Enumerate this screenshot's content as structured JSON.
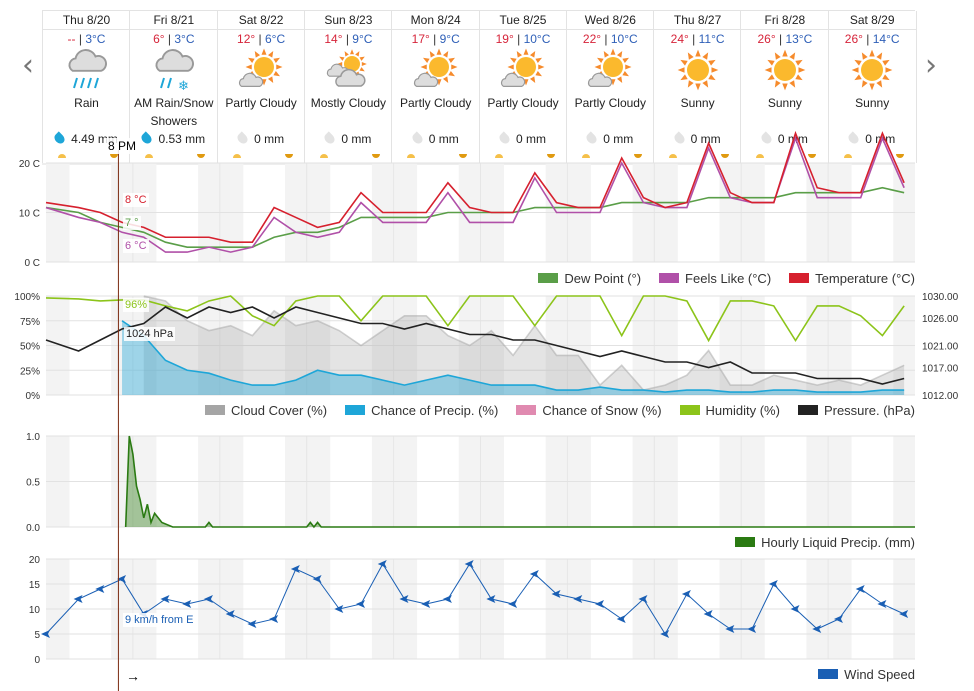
{
  "nav": {
    "prev": "‹",
    "next": "›"
  },
  "days": [
    {
      "day": "Thu 8/20",
      "hi": "--",
      "lo": "3°C",
      "icon": "rain",
      "cond": "Rain",
      "cond2": "",
      "precip": "4.49 mm",
      "wet": true
    },
    {
      "day": "Fri 8/21",
      "hi": "6°",
      "lo": "3°C",
      "icon": "rain-snow",
      "cond": "AM Rain/Snow",
      "cond2": "Showers",
      "precip": "0.53 mm",
      "wet": true
    },
    {
      "day": "Sat 8/22",
      "hi": "12°",
      "lo": "6°C",
      "icon": "partly-cloudy",
      "cond": "Partly Cloudy",
      "cond2": "",
      "precip": "0 mm",
      "wet": false
    },
    {
      "day": "Sun 8/23",
      "hi": "14°",
      "lo": "9°C",
      "icon": "mostly-cloudy",
      "cond": "Mostly Cloudy",
      "cond2": "",
      "precip": "0 mm",
      "wet": false
    },
    {
      "day": "Mon 8/24",
      "hi": "17°",
      "lo": "9°C",
      "icon": "partly-cloudy",
      "cond": "Partly Cloudy",
      "cond2": "",
      "precip": "0 mm",
      "wet": false
    },
    {
      "day": "Tue 8/25",
      "hi": "19°",
      "lo": "10°C",
      "icon": "partly-cloudy",
      "cond": "Partly Cloudy",
      "cond2": "",
      "precip": "0 mm",
      "wet": false
    },
    {
      "day": "Wed 8/26",
      "hi": "22°",
      "lo": "10°C",
      "icon": "partly-cloudy",
      "cond": "Partly Cloudy",
      "cond2": "",
      "precip": "0 mm",
      "wet": false
    },
    {
      "day": "Thu 8/27",
      "hi": "24°",
      "lo": "11°C",
      "icon": "sunny",
      "cond": "Sunny",
      "cond2": "",
      "precip": "0 mm",
      "wet": false
    },
    {
      "day": "Fri 8/28",
      "hi": "26°",
      "lo": "13°C",
      "icon": "sunny",
      "cond": "Sunny",
      "cond2": "",
      "precip": "0 mm",
      "wet": false
    },
    {
      "day": "Sat 8/29",
      "hi": "26°",
      "lo": "14°C",
      "icon": "sunny",
      "cond": "Sunny",
      "cond2": "",
      "precip": "0 mm",
      "wet": false
    }
  ],
  "cursor": {
    "time": "8 PM",
    "hour": 20,
    "temp": "8 °C",
    "dew": "7 °",
    "feels": "6 °C",
    "humidity": "96%",
    "pressure": "1024 hPa",
    "wind": "9 km/h from E",
    "wind_arrow": "→"
  },
  "chart_data": [
    {
      "type": "line",
      "name": "temperature",
      "hours_step": 6,
      "yticks": [
        "0 C",
        "10 C",
        "20 C"
      ],
      "ytick_values": [
        0,
        10,
        20
      ],
      "ylim": [
        0,
        20
      ],
      "series": [
        {
          "name": "Dew Point (°)",
          "color": "#5a9e48",
          "values": [
            11,
            10,
            8,
            7,
            6,
            4,
            3,
            3,
            3,
            3,
            5,
            6,
            6,
            7,
            9,
            9,
            9,
            9,
            10,
            10,
            10,
            10,
            11,
            11,
            11,
            11,
            12,
            12,
            12,
            12,
            13,
            13,
            13,
            13,
            14,
            14,
            14,
            14,
            15,
            14
          ]
        },
        {
          "name": "Feels Like (°C)",
          "color": "#b050a8",
          "values": [
            11,
            9,
            8,
            6,
            5,
            2,
            2,
            3,
            2,
            3,
            9,
            6,
            5,
            6,
            12,
            8,
            8,
            8,
            14,
            8,
            8,
            8,
            17,
            10,
            10,
            10,
            20,
            12,
            11,
            11,
            23,
            13,
            12,
            12,
            25,
            13,
            13,
            13,
            25,
            15
          ]
        },
        {
          "name": "Temperature (°C)",
          "color": "#d6202e",
          "values": [
            12,
            11,
            10,
            8,
            7,
            5,
            5,
            5,
            4,
            4,
            11,
            9,
            7,
            8,
            14,
            10,
            10,
            10,
            16,
            11,
            10,
            10,
            18,
            12,
            11,
            11,
            21,
            13,
            11,
            12,
            24,
            14,
            12,
            12,
            26,
            15,
            14,
            14,
            26,
            16
          ]
        }
      ]
    },
    {
      "type": "area",
      "name": "atmosphere",
      "hours_step": 6,
      "yticks": [
        "0%",
        "25%",
        "50%",
        "75%",
        "100%"
      ],
      "ytick_values": [
        0,
        25,
        50,
        75,
        100
      ],
      "ylim": [
        0,
        100
      ],
      "y2ticks": [
        "1012.00",
        "1017.00",
        "1021.00",
        "1026.00",
        "1030.00"
      ],
      "y2tick_values": [
        1012,
        1017,
        1021,
        1026,
        1030
      ],
      "y2lim": [
        1012,
        1030
      ],
      "series": [
        {
          "name": "Cloud Cover (%)",
          "color": "#a5a5a5",
          "values": [
            null,
            null,
            null,
            null,
            100,
            95,
            75,
            65,
            70,
            60,
            85,
            70,
            75,
            65,
            50,
            65,
            80,
            80,
            60,
            50,
            65,
            40,
            70,
            40,
            40,
            10,
            30,
            5,
            10,
            20,
            45,
            10,
            10,
            20,
            15,
            10,
            15,
            10,
            20,
            30
          ]
        },
        {
          "name": "Chance of Precip. (%)",
          "color": "#1ea6d8",
          "values": [
            null,
            null,
            null,
            75,
            60,
            35,
            25,
            22,
            15,
            10,
            10,
            15,
            25,
            20,
            20,
            15,
            10,
            15,
            20,
            15,
            10,
            10,
            10,
            5,
            5,
            8,
            5,
            5,
            3,
            5,
            5,
            3,
            3,
            5,
            5,
            3,
            3,
            3,
            5,
            5
          ]
        },
        {
          "name": "Chance of Snow (%)",
          "color": "#e08ab0",
          "values": []
        },
        {
          "name": "Humidity (%)",
          "color": "#8cc41a",
          "values": [
            98,
            97,
            95,
            96,
            96,
            90,
            85,
            95,
            100,
            80,
            70,
            95,
            100,
            100,
            75,
            100,
            100,
            100,
            70,
            100,
            100,
            100,
            70,
            100,
            100,
            100,
            60,
            100,
            100,
            95,
            55,
            95,
            95,
            90,
            55,
            90,
            90,
            80,
            60,
            90
          ]
        },
        {
          "name": "Pressure. (hPa)",
          "color": "#222222",
          "axis": "right",
          "values": [
            1022,
            1020,
            1022,
            1024,
            1025,
            1028,
            1026,
            1028,
            1027,
            1028,
            1026,
            1028,
            1027,
            1026,
            1025,
            1025,
            1024,
            1025,
            1024,
            1023,
            1023,
            1022,
            1022,
            1021,
            1020,
            1019,
            1020,
            1019,
            1018,
            1018,
            1017,
            1018,
            1016,
            1016,
            1016,
            1015,
            1015,
            1015,
            1014,
            1015
          ]
        }
      ]
    },
    {
      "type": "area",
      "name": "precipitation",
      "yticks": [
        "0.0",
        "0.5",
        "1.0"
      ],
      "ytick_values": [
        0,
        0.5,
        1
      ],
      "ylim": [
        0,
        1
      ],
      "series": [
        {
          "name": "Hourly Liquid Precip. (mm)",
          "color": "#2a7a12",
          "points": [
            [
              22,
              0
            ],
            [
              23,
              1.0
            ],
            [
              24,
              0.8
            ],
            [
              25,
              0.45
            ],
            [
              26,
              0.3
            ],
            [
              27,
              0.1
            ],
            [
              28,
              0.25
            ],
            [
              29,
              0.05
            ],
            [
              30,
              0.15
            ],
            [
              31,
              0.1
            ],
            [
              32,
              0.05
            ],
            [
              35,
              0
            ],
            [
              44,
              0
            ],
            [
              45,
              0.05
            ],
            [
              46,
              0
            ],
            [
              72,
              0
            ],
            [
              73,
              0.05
            ],
            [
              74,
              0
            ],
            [
              75,
              0.05
            ],
            [
              76,
              0
            ],
            [
              240,
              0
            ]
          ]
        }
      ]
    },
    {
      "type": "line",
      "name": "wind",
      "hours_step": 6,
      "yticks": [
        "0",
        "5",
        "10",
        "15",
        "20"
      ],
      "ytick_values": [
        0,
        5,
        10,
        15,
        20
      ],
      "ylim": [
        0,
        20
      ],
      "series": [
        {
          "name": "Wind Speed",
          "color": "#1a5fb4",
          "values": [
            5,
            12,
            14,
            16,
            9,
            12,
            11,
            12,
            9,
            7,
            8,
            18,
            16,
            10,
            11,
            19,
            12,
            11,
            12,
            19,
            12,
            11,
            17,
            13,
            12,
            11,
            8,
            12,
            5,
            13,
            9,
            6,
            6,
            15,
            10,
            6,
            8,
            14,
            11,
            9
          ]
        }
      ]
    }
  ]
}
